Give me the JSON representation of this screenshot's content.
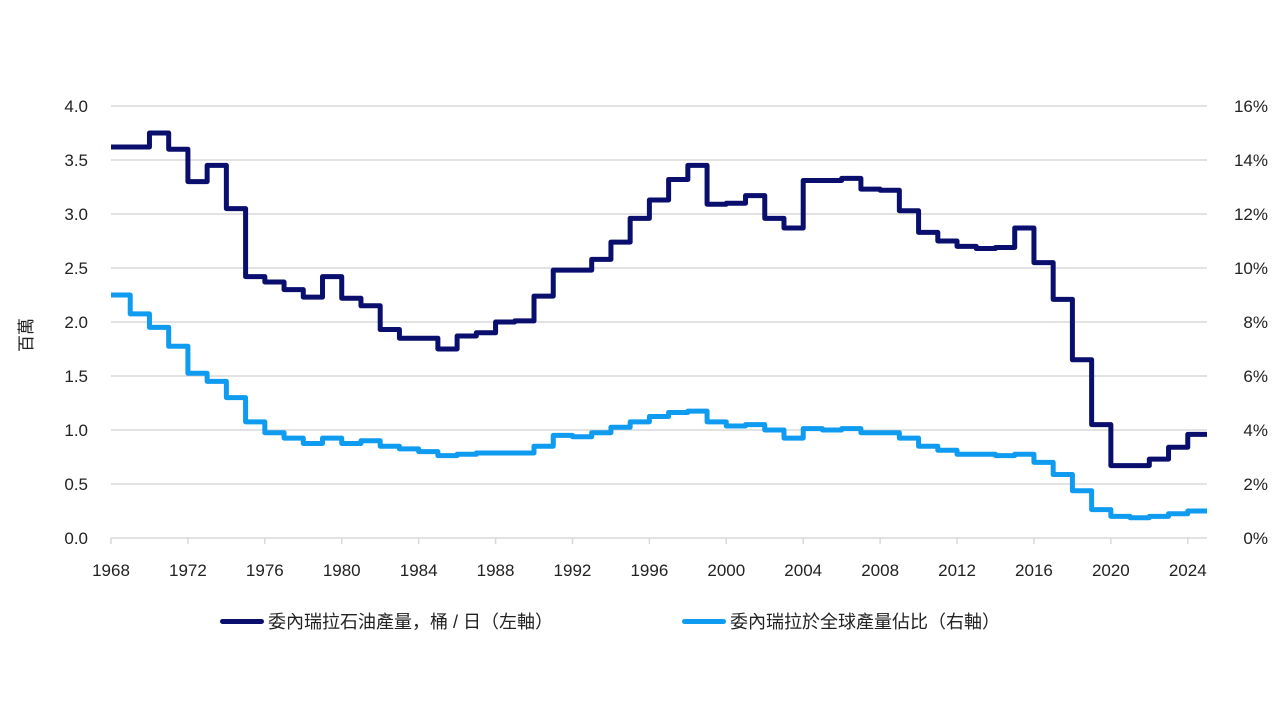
{
  "chart_data": {
    "type": "line",
    "step": true,
    "title": "",
    "ylabel": "百萬",
    "xlabel": "",
    "xlim": [
      1968,
      2025
    ],
    "ylim": [
      0,
      4.0
    ],
    "y2lim": [
      0,
      16
    ],
    "grid": true,
    "legend_position": "bottom",
    "x_ticks": [
      "1968",
      "1972",
      "1976",
      "1980",
      "1984",
      "1988",
      "1992",
      "1996",
      "2000",
      "2004",
      "2008",
      "2012",
      "2016",
      "2020",
      "2024"
    ],
    "y_ticks": [
      "0.0",
      "0.5",
      "1.0",
      "1.5",
      "2.0",
      "2.5",
      "3.0",
      "3.5",
      "4.0"
    ],
    "y2_ticks": [
      "0%",
      "2%",
      "4%",
      "6%",
      "8%",
      "10%",
      "12%",
      "14%",
      "16%"
    ],
    "x": [
      1968,
      1969,
      1970,
      1971,
      1972,
      1973,
      1974,
      1975,
      1976,
      1977,
      1978,
      1979,
      1980,
      1981,
      1982,
      1983,
      1984,
      1985,
      1986,
      1987,
      1988,
      1989,
      1990,
      1991,
      1992,
      1993,
      1994,
      1995,
      1996,
      1997,
      1998,
      1999,
      2000,
      2001,
      2002,
      2003,
      2004,
      2005,
      2006,
      2007,
      2008,
      2009,
      2010,
      2011,
      2012,
      2013,
      2014,
      2015,
      2016,
      2017,
      2018,
      2019,
      2020,
      2021,
      2022,
      2023,
      2024
    ],
    "series": [
      {
        "name": "委內瑞拉石油產量，桶 / 日（左軸）",
        "axis": "left",
        "color": "#0a0f6e",
        "values": [
          3.62,
          3.62,
          3.75,
          3.6,
          3.3,
          3.45,
          3.05,
          2.42,
          2.37,
          2.3,
          2.23,
          2.42,
          2.22,
          2.15,
          1.93,
          1.85,
          1.85,
          1.75,
          1.87,
          1.9,
          2.0,
          2.01,
          2.24,
          2.48,
          2.48,
          2.58,
          2.74,
          2.96,
          3.13,
          3.32,
          3.45,
          3.09,
          3.1,
          3.17,
          2.96,
          2.87,
          3.31,
          3.31,
          3.33,
          3.23,
          3.22,
          3.03,
          2.83,
          2.75,
          2.7,
          2.68,
          2.69,
          2.87,
          2.55,
          2.21,
          1.65,
          1.05,
          0.67,
          0.67,
          0.73,
          0.84,
          0.96
        ]
      },
      {
        "name": "委內瑞拉於全球產量佔比（右軸）",
        "axis": "right",
        "color": "#0f9bf0",
        "values": [
          9.0,
          8.3,
          7.8,
          7.1,
          6.1,
          5.8,
          5.2,
          4.3,
          3.9,
          3.7,
          3.5,
          3.7,
          3.5,
          3.6,
          3.4,
          3.3,
          3.2,
          3.05,
          3.1,
          3.15,
          3.15,
          3.15,
          3.4,
          3.8,
          3.75,
          3.9,
          4.1,
          4.3,
          4.5,
          4.65,
          4.7,
          4.3,
          4.15,
          4.2,
          4.0,
          3.7,
          4.05,
          4.0,
          4.05,
          3.9,
          3.9,
          3.7,
          3.4,
          3.25,
          3.1,
          3.1,
          3.05,
          3.1,
          2.8,
          2.35,
          1.75,
          1.05,
          0.8,
          0.75,
          0.8,
          0.9,
          1.0
        ]
      }
    ]
  }
}
